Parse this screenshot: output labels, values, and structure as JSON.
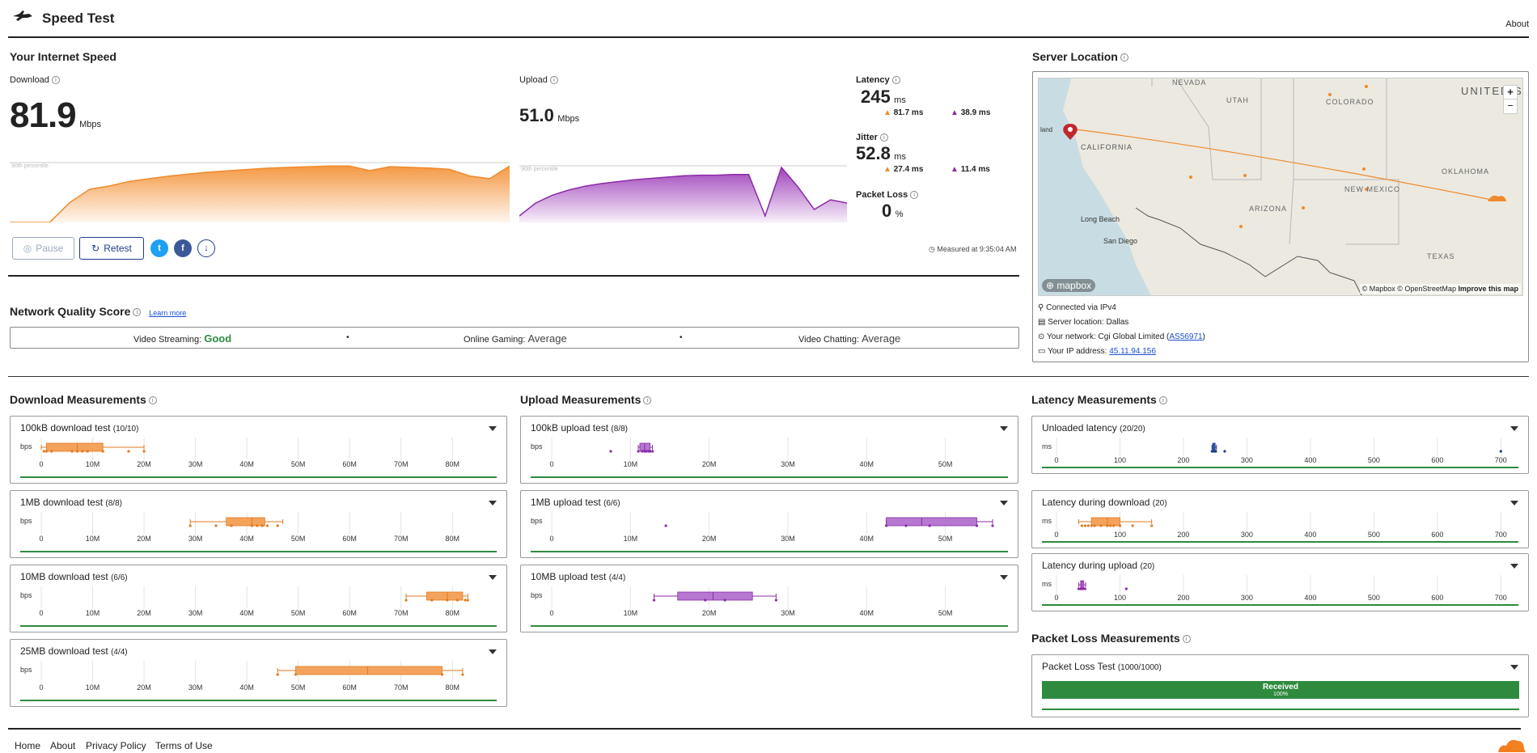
{
  "header": {
    "title": "Speed Test",
    "about": "About"
  },
  "speed": {
    "heading": "Your Internet Speed",
    "download": {
      "label": "Download",
      "value": "81.9",
      "unit": "Mbps"
    },
    "upload": {
      "label": "Upload",
      "value": "51.0",
      "unit": "Mbps"
    },
    "percentile_label": "90th percentile",
    "latency": {
      "label": "Latency",
      "value": "245",
      "unit": "ms",
      "down": "81.7 ms",
      "up": "38.9 ms"
    },
    "jitter": {
      "label": "Jitter",
      "value": "52.8",
      "unit": "ms",
      "down": "27.4 ms",
      "up": "11.4 ms"
    },
    "packet_loss": {
      "label": "Packet Loss",
      "value": "0",
      "unit": "%"
    },
    "pause_label": "Pause",
    "retest_label": "Retest",
    "measured_at": "Measured at 9:35:04 AM"
  },
  "nqs": {
    "heading": "Network Quality Score",
    "learn_more": "Learn more",
    "items": [
      {
        "label": "Video Streaming:",
        "value": "Good",
        "color": "#2e8b3e"
      },
      {
        "label": "Online Gaming:",
        "value": "Average",
        "color": "#444444"
      },
      {
        "label": "Video Chatting:",
        "value": "Average",
        "color": "#444444"
      }
    ],
    "sep": "•"
  },
  "server": {
    "heading": "Server Location",
    "map_labels": [
      "NEVADA",
      "UTAH",
      "COLORADO",
      "UNITED STATES",
      "CALIFORNIA",
      "OKLAHOMA",
      "NEW MEXICO",
      "ARIZONA",
      "Long Beach",
      "San Diego",
      "TEXAS",
      "land"
    ],
    "mapbox": "mapbox",
    "attribution": "© Mapbox © OpenStreetMap",
    "improve": "Improve this map",
    "zoom_in": "+",
    "zoom_out": "−",
    "connected_via": "Connected via IPv4",
    "server_location": "Server location: Dallas",
    "network_label": "Your network: Cgi Global Limited (",
    "network_as": "AS56971",
    "network_close": ")",
    "ip_label": "Your IP address: ",
    "ip": "45.11.94.156"
  },
  "download_measurements": {
    "heading": "Download Measurements",
    "unit": "bps",
    "ticks": [
      "0",
      "10M",
      "20M",
      "30M",
      "40M",
      "50M",
      "60M",
      "70M",
      "80M"
    ],
    "tests": [
      {
        "title": "100kB download test",
        "count": "(10/10)"
      },
      {
        "title": "1MB download test",
        "count": "(8/8)"
      },
      {
        "title": "10MB download test",
        "count": "(6/6)"
      },
      {
        "title": "25MB download test",
        "count": "(4/4)"
      }
    ]
  },
  "upload_measurements": {
    "heading": "Upload Measurements",
    "unit": "bps",
    "ticks": [
      "0",
      "10M",
      "20M",
      "30M",
      "40M",
      "50M"
    ],
    "tests": [
      {
        "title": "100kB upload test",
        "count": "(8/8)"
      },
      {
        "title": "1MB upload test",
        "count": "(6/6)"
      },
      {
        "title": "10MB upload test",
        "count": "(4/4)"
      }
    ]
  },
  "latency_measurements": {
    "heading": "Latency Measurements",
    "unit": "ms",
    "ticks": [
      "0",
      "100",
      "200",
      "300",
      "400",
      "500",
      "600",
      "700"
    ],
    "tests": [
      {
        "title": "Unloaded latency",
        "count": "(20/20)"
      },
      {
        "title": "Latency during download",
        "count": "(20)"
      },
      {
        "title": "Latency during upload",
        "count": "(20)"
      }
    ]
  },
  "packet_loss_measurements": {
    "heading": "Packet Loss Measurements",
    "test": {
      "title": "Packet Loss Test",
      "count": "(1000/1000)"
    },
    "received_label": "Received",
    "received_pct": "100%",
    "received_fraction": 1.0
  },
  "footer": {
    "links": [
      "Home",
      "About",
      "Privacy Policy",
      "Terms of Use"
    ]
  },
  "chart_data": [
    {
      "type": "box",
      "name": "100kB download test",
      "unit": "bps",
      "xlim": [
        0,
        85000000
      ],
      "box": {
        "min": 0,
        "q1": 1000000,
        "median": 7000000,
        "q3": 12000000,
        "max": 20000000
      },
      "points": [
        500000,
        1000000,
        6000000,
        7000000,
        8000000,
        9000000,
        12000000,
        17000000,
        20000000,
        2000000
      ]
    },
    {
      "type": "box",
      "name": "1MB download test",
      "unit": "bps",
      "xlim": [
        0,
        85000000
      ],
      "box": {
        "min": 29000000,
        "q1": 36000000,
        "median": 41000000,
        "q3": 43500000,
        "max": 47000000
      },
      "points": [
        29000000,
        34000000,
        37000000,
        41000000,
        42000000,
        43000000,
        44000000,
        46000000
      ]
    },
    {
      "type": "box",
      "name": "10MB download test",
      "unit": "bps",
      "xlim": [
        0,
        85000000
      ],
      "box": {
        "min": 71000000,
        "q1": 75000000,
        "median": 79000000,
        "q3": 82000000,
        "max": 83000000
      },
      "points": [
        71000000,
        76000000,
        79000000,
        81000000,
        82500000,
        83000000
      ]
    },
    {
      "type": "box",
      "name": "25MB download test",
      "unit": "bps",
      "xlim": [
        0,
        85000000
      ],
      "box": {
        "min": 46000000,
        "q1": 49500000,
        "median": 63500000,
        "q3": 78000000,
        "max": 82000000
      },
      "points": [
        46000000,
        49500000,
        78000000,
        82000000
      ]
    },
    {
      "type": "box",
      "name": "100kB upload test",
      "unit": "bps",
      "xlim": [
        0,
        56000000
      ],
      "box": {
        "min": 11000000,
        "q1": 11200000,
        "median": 11800000,
        "q3": 12500000,
        "max": 12800000
      },
      "points": [
        7500000,
        11000000,
        11500000,
        12000000,
        12300000,
        12800000,
        11800000,
        12500000
      ]
    },
    {
      "type": "box",
      "name": "1MB upload test",
      "unit": "bps",
      "xlim": [
        0,
        56000000
      ],
      "box": {
        "min": 42500000,
        "q1": 42500000,
        "median": 47000000,
        "q3": 54000000,
        "max": 56000000
      },
      "points": [
        14500000,
        42500000,
        45000000,
        48000000,
        54000000,
        56000000
      ]
    },
    {
      "type": "box",
      "name": "10MB upload test",
      "unit": "bps",
      "xlim": [
        0,
        56000000
      ],
      "box": {
        "min": 13000000,
        "q1": 16000000,
        "median": 20500000,
        "q3": 25500000,
        "max": 28500000
      },
      "points": [
        13000000,
        19500000,
        22000000,
        28500000
      ]
    },
    {
      "type": "box",
      "name": "Unloaded latency",
      "unit": "ms",
      "xlim": [
        0,
        720
      ],
      "box": {
        "min": 245,
        "q1": 246,
        "median": 248,
        "q3": 250,
        "max": 252
      },
      "points": [
        245,
        247,
        249,
        251,
        265,
        700
      ]
    },
    {
      "type": "box",
      "name": "Latency during download",
      "unit": "ms",
      "xlim": [
        0,
        720
      ],
      "box": {
        "min": 35,
        "q1": 55,
        "median": 80,
        "q3": 100,
        "max": 150
      },
      "points": [
        40,
        45,
        50,
        55,
        60,
        70,
        80,
        85,
        90,
        100,
        120,
        150
      ]
    },
    {
      "type": "box",
      "name": "Latency during upload",
      "unit": "ms",
      "xlim": [
        0,
        720
      ],
      "box": {
        "min": 35,
        "q1": 38,
        "median": 40,
        "q3": 43,
        "max": 46
      },
      "points": [
        35,
        38,
        40,
        42,
        45,
        110
      ]
    },
    {
      "type": "area",
      "name": "Download",
      "x": [
        0,
        1,
        2,
        3,
        4,
        5,
        6,
        7,
        8,
        9,
        10,
        11,
        12,
        13,
        14,
        15,
        16,
        17,
        18,
        19,
        20,
        21,
        22,
        23,
        24,
        25
      ],
      "y": [
        0,
        0,
        0,
        0.3,
        0.5,
        0.55,
        0.62,
        0.66,
        0.7,
        0.73,
        0.76,
        0.78,
        0.8,
        0.82,
        0.83,
        0.84,
        0.85,
        0.85,
        0.78,
        0.84,
        0.83,
        0.82,
        0.8,
        0.7,
        0.66,
        0.85
      ]
    },
    {
      "type": "area",
      "name": "Upload",
      "x": [
        0,
        1,
        2,
        3,
        4,
        5,
        6,
        7,
        8,
        9,
        10,
        11,
        12,
        13,
        14,
        15,
        16,
        17,
        18,
        19,
        20
      ],
      "y": [
        0.1,
        0.3,
        0.42,
        0.5,
        0.56,
        0.6,
        0.63,
        0.66,
        0.68,
        0.7,
        0.72,
        0.73,
        0.73,
        0.74,
        0.74,
        0.1,
        0.85,
        0.55,
        0.2,
        0.35,
        0.3
      ]
    }
  ]
}
